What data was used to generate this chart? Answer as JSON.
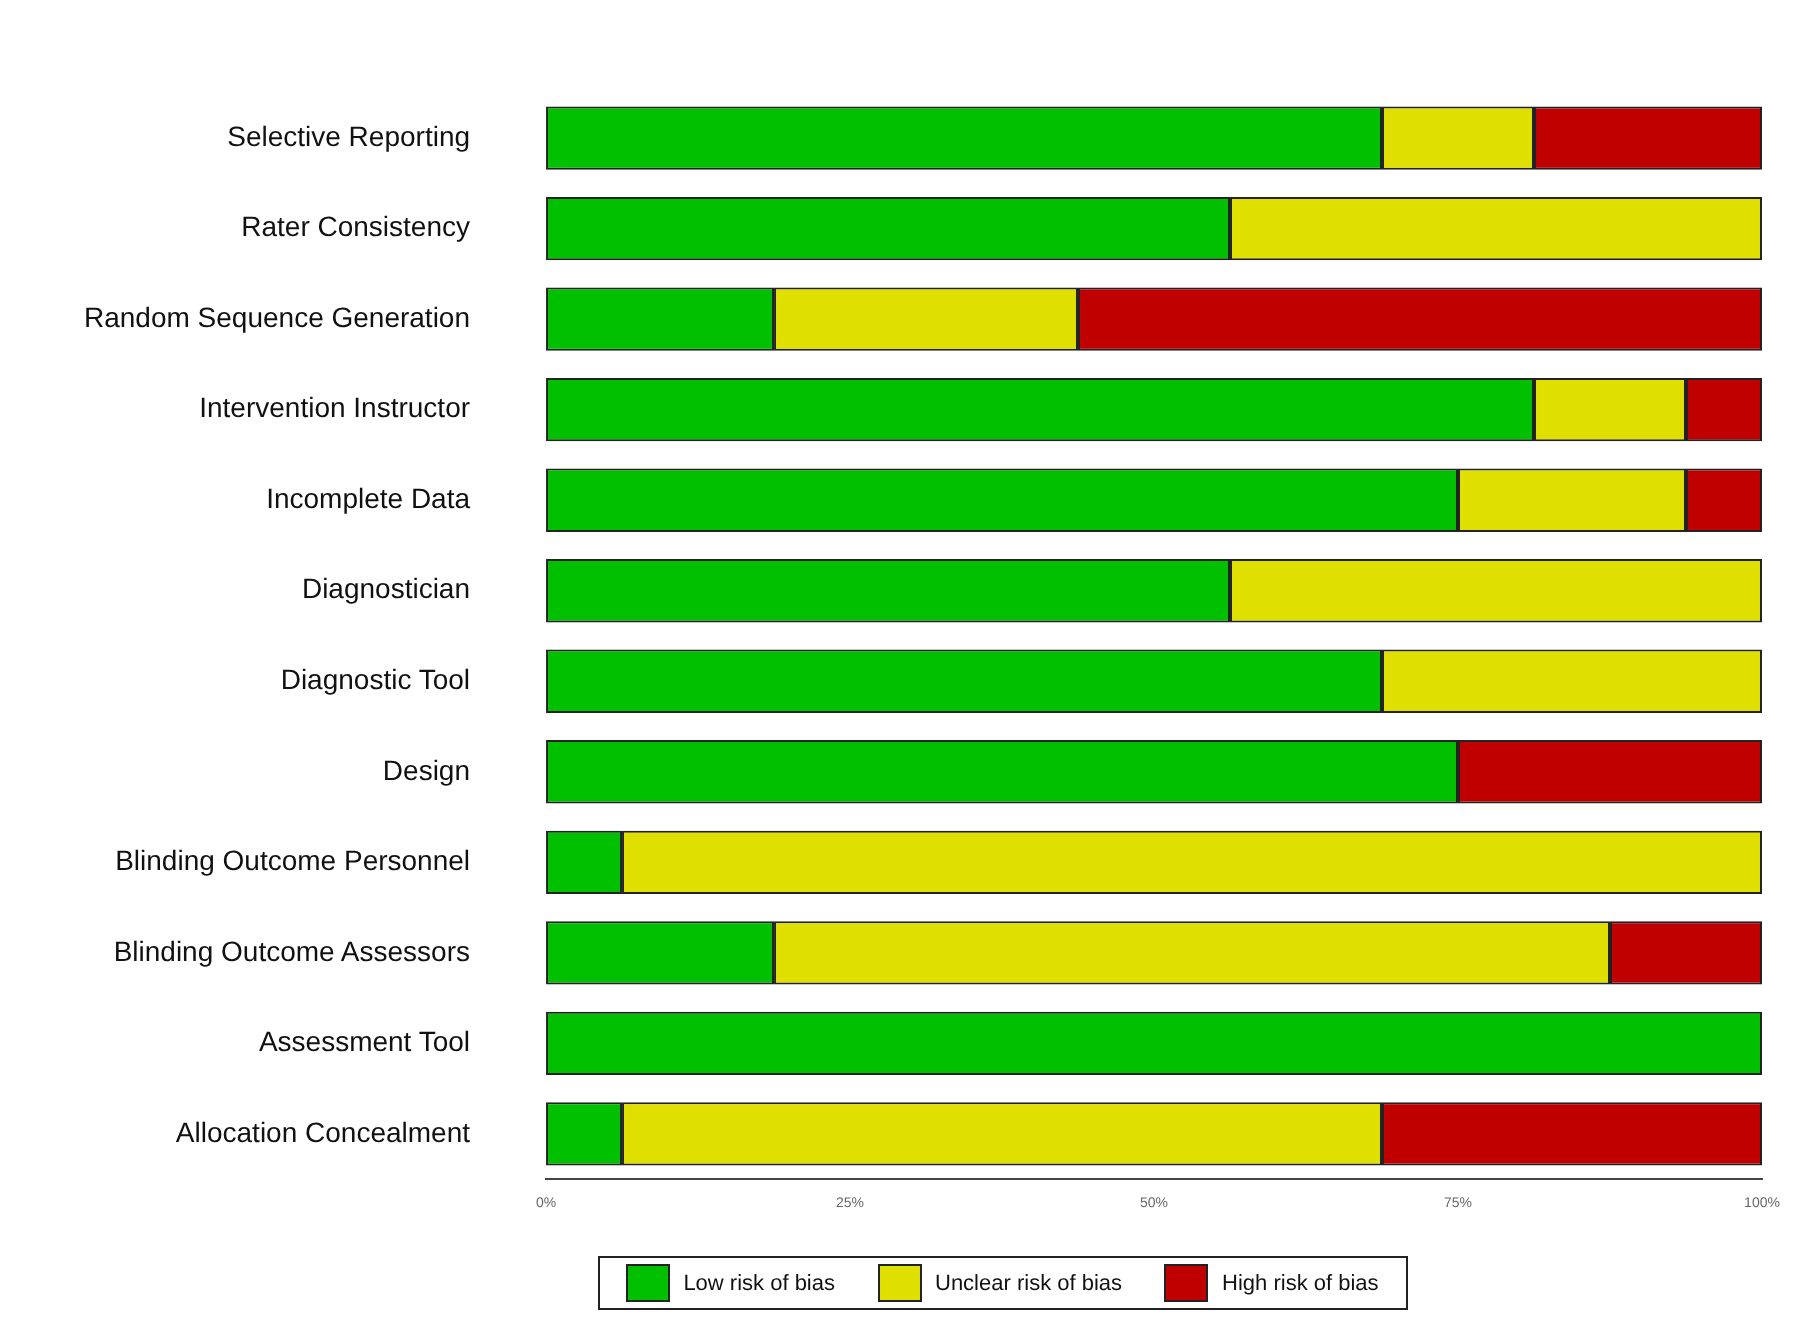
{
  "chart_data": {
    "type": "bar",
    "orientation": "horizontal",
    "stacked": true,
    "categories": [
      "Selective Reporting",
      "Rater Consistency",
      "Random Sequence Generation",
      "Intervention Instructor",
      "Incomplete Data",
      "Diagnostician",
      "Diagnostic Tool",
      "Design",
      "Blinding Outcome Personnel",
      "Blinding Outcome Assessors",
      "Assessment Tool",
      "Allocation Concealment"
    ],
    "series": [
      {
        "name": "Low risk of bias",
        "color": "#00c000",
        "values": [
          68.75,
          56.25,
          18.75,
          81.25,
          75,
          56.25,
          68.75,
          75,
          6.25,
          18.75,
          100,
          6.25
        ]
      },
      {
        "name": "Unclear risk of bias",
        "color": "#e0e000",
        "values": [
          12.5,
          43.75,
          25,
          12.5,
          18.75,
          43.75,
          31.25,
          0,
          93.75,
          68.75,
          0,
          62.5
        ]
      },
      {
        "name": "High risk of bias",
        "color": "#c00000",
        "values": [
          18.75,
          0,
          56.25,
          6.25,
          6.25,
          0,
          0,
          25,
          0,
          12.5,
          0,
          31.25
        ]
      }
    ],
    "xlim": [
      0,
      100
    ],
    "xticks": [
      {
        "value": 0,
        "label": "0%"
      },
      {
        "value": 25,
        "label": "25%"
      },
      {
        "value": 50,
        "label": "50%"
      },
      {
        "value": 75,
        "label": "75%"
      },
      {
        "value": 100,
        "label": "100%"
      }
    ],
    "grid": false,
    "legend": "bottom"
  }
}
